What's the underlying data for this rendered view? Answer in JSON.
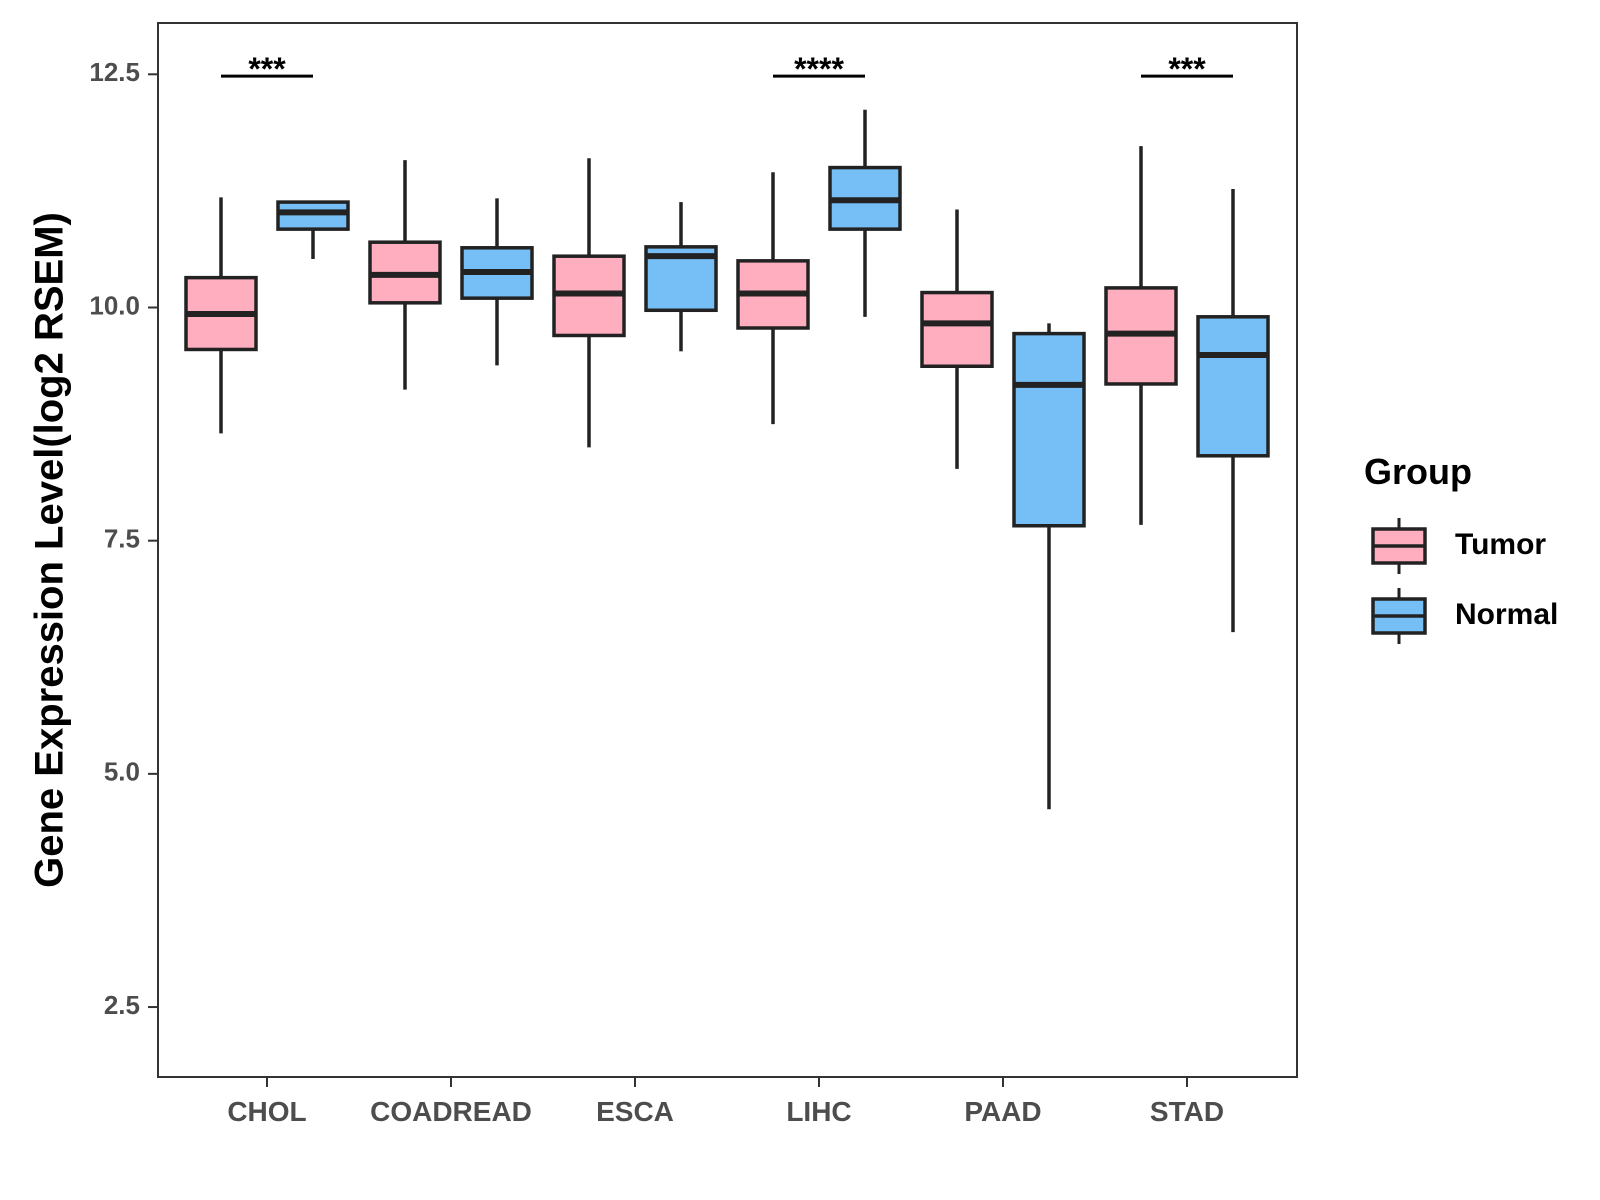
{
  "chart_data": {
    "type": "boxplot",
    "title": "",
    "xlabel": "",
    "ylabel": "Gene Expression Level(log2 RSEM)",
    "ylim": [
      1.75,
      13.05
    ],
    "yticks": [
      2.5,
      5.0,
      7.5,
      10.0,
      12.5
    ],
    "ytick_labels": [
      "2.5",
      "5.0",
      "7.5",
      "10.0",
      "12.5"
    ],
    "categories": [
      "CHOL",
      "COADREAD",
      "ESCA",
      "LIHC",
      "PAAD",
      "STAD"
    ],
    "legend": {
      "title": "Group",
      "position": "right",
      "entries": [
        {
          "name": "Tumor",
          "color": "#FFAEC0"
        },
        {
          "name": "Normal",
          "color": "#75BFF6"
        }
      ]
    },
    "series": [
      {
        "name": "Tumor",
        "color": "#FFAEC0",
        "boxes": [
          {
            "category": "CHOL",
            "whisker_low": 8.65,
            "q1": 9.55,
            "median": 9.93,
            "q3": 10.32,
            "whisker_high": 11.18
          },
          {
            "category": "COADREAD",
            "whisker_low": 9.12,
            "q1": 10.05,
            "median": 10.35,
            "q3": 10.7,
            "whisker_high": 11.58
          },
          {
            "category": "ESCA",
            "whisker_low": 8.5,
            "q1": 9.7,
            "median": 10.15,
            "q3": 10.55,
            "whisker_high": 11.6
          },
          {
            "category": "LIHC",
            "whisker_low": 8.75,
            "q1": 9.78,
            "median": 10.15,
            "q3": 10.5,
            "whisker_high": 11.45
          },
          {
            "category": "PAAD",
            "whisker_low": 8.27,
            "q1": 9.37,
            "median": 9.83,
            "q3": 10.16,
            "whisker_high": 11.05
          },
          {
            "category": "STAD",
            "whisker_low": 7.67,
            "q1": 9.18,
            "median": 9.72,
            "q3": 10.21,
            "whisker_high": 11.73
          }
        ]
      },
      {
        "name": "Normal",
        "color": "#75BFF6",
        "boxes": [
          {
            "category": "CHOL",
            "whisker_low": 10.52,
            "q1": 10.84,
            "median": 11.02,
            "q3": 11.13,
            "whisker_high": 11.13
          },
          {
            "category": "COADREAD",
            "whisker_low": 9.38,
            "q1": 10.1,
            "median": 10.38,
            "q3": 10.64,
            "whisker_high": 11.17
          },
          {
            "category": "ESCA",
            "whisker_low": 9.53,
            "q1": 9.97,
            "median": 10.55,
            "q3": 10.65,
            "whisker_high": 11.13
          },
          {
            "category": "LIHC",
            "whisker_low": 9.9,
            "q1": 10.84,
            "median": 11.15,
            "q3": 11.5,
            "whisker_high": 12.12
          },
          {
            "category": "PAAD",
            "whisker_low": 4.62,
            "q1": 7.66,
            "median": 9.17,
            "q3": 9.72,
            "whisker_high": 9.83
          },
          {
            "category": "STAD",
            "whisker_low": 6.52,
            "q1": 8.41,
            "median": 9.49,
            "q3": 9.9,
            "whisker_high": 11.27
          }
        ]
      }
    ],
    "annotations": [
      {
        "category": "CHOL",
        "label": "***",
        "y": 12.48
      },
      {
        "category": "LIHC",
        "label": "****",
        "y": 12.48
      },
      {
        "category": "STAD",
        "label": "***",
        "y": 12.48
      }
    ]
  }
}
